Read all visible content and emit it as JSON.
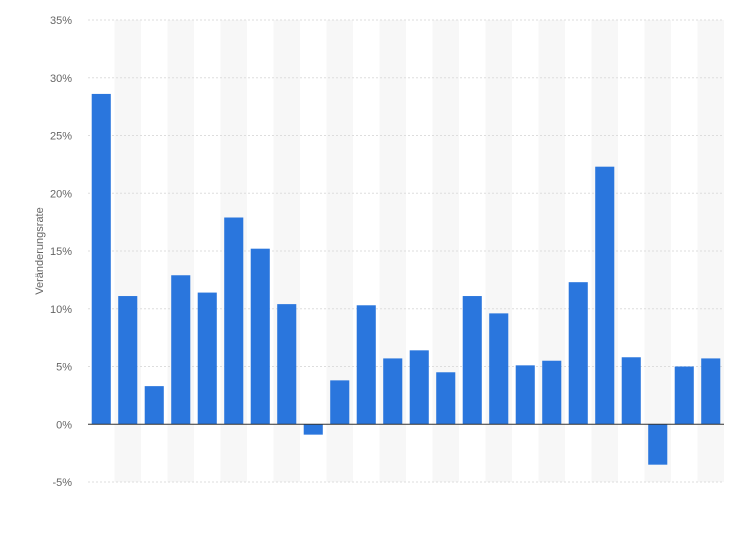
{
  "chart_data": {
    "type": "bar",
    "ylabel": "Veränderungsrate",
    "ylim": [
      -5,
      35
    ],
    "ytick_labels": [
      "-5%",
      "0%",
      "5%",
      "10%",
      "15%",
      "20%",
      "25%",
      "30%",
      "35%"
    ],
    "values": [
      28.6,
      11.1,
      3.3,
      12.9,
      11.4,
      17.9,
      15.2,
      10.4,
      -0.9,
      3.8,
      10.3,
      5.7,
      6.4,
      4.5,
      11.1,
      9.6,
      5.1,
      5.5,
      12.3,
      22.3,
      5.8,
      -3.5,
      5.0,
      5.7
    ],
    "grid": true,
    "colors": {
      "bar": "#2a76dd",
      "band": "#f7f7f7",
      "grid": "#dddddd",
      "zero_line": "#333333"
    }
  }
}
